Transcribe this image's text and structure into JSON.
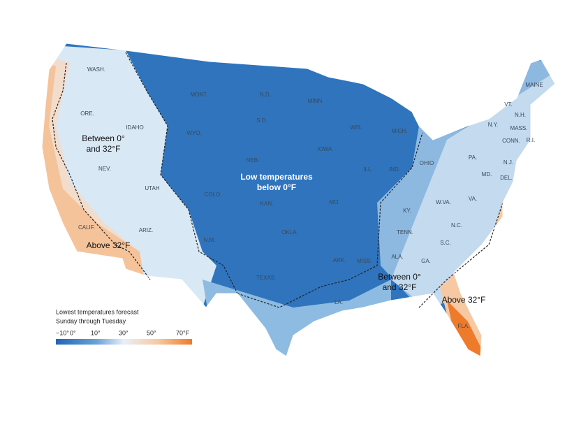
{
  "states": [
    "WASH.",
    "ORE.",
    "IDAHO",
    "MONT.",
    "WYO.",
    "N.D.",
    "S.D.",
    "MINN.",
    "WIS.",
    "MICH.",
    "IOWA",
    "NEB.",
    "ILL.",
    "IND.",
    "OHIO",
    "NEV.",
    "UTAH",
    "COLO.",
    "KAN.",
    "MO.",
    "KY.",
    "W.VA.",
    "VA.",
    "PA.",
    "N.Y.",
    "VT.",
    "N.H.",
    "MAINE",
    "MASS.",
    "CONN.",
    "R.I.",
    "N.J.",
    "MD.",
    "DEL.",
    "CALIF.",
    "ARIZ.",
    "N.M.",
    "OKLA.",
    "TENN.",
    "N.C.",
    "S.C.",
    "ALA.",
    "GA.",
    "ARK.",
    "MISS.",
    "TEXAS",
    "LA.",
    "FLA."
  ],
  "regions": [
    {
      "lines": [
        "Between 0°",
        "and 32°F"
      ]
    },
    {
      "lines": [
        "Above 32°F"
      ]
    },
    {
      "lines": [
        "Low temperatures",
        "below 0°F"
      ]
    },
    {
      "lines": [
        "Between 0°",
        "and 32°F"
      ]
    },
    {
      "lines": [
        "Above 32°F"
      ]
    }
  ],
  "legend": {
    "title": [
      "Lowest temperatures forecast",
      "Sunday through Tuesday"
    ],
    "ticks": [
      "−10°",
      "0°",
      "10°",
      "30°",
      "50°",
      "70°F"
    ]
  }
}
